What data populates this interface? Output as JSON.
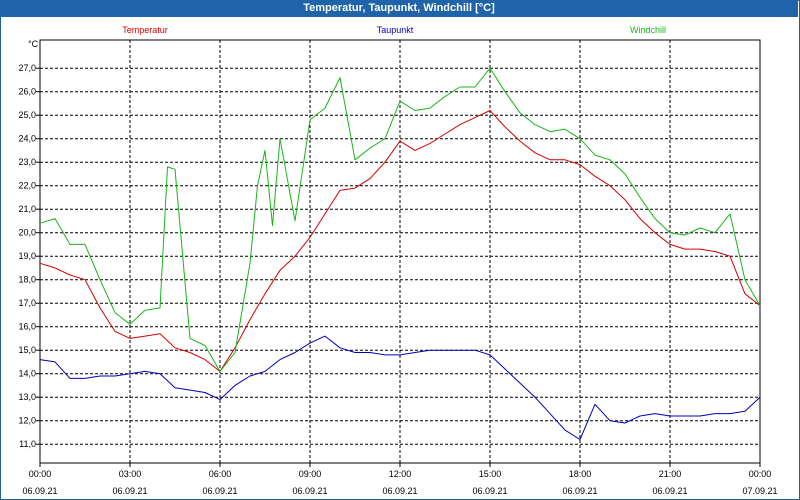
{
  "window": {
    "title": "Temperatur, Taupunkt, Windchill [°C]"
  },
  "colors": {
    "temperatur": "#d40000",
    "taupunkt": "#0000b4",
    "windchill": "#19b419",
    "titlebar": "#1f63a8",
    "grid": "#000000"
  },
  "chart_data": {
    "type": "line",
    "title": "Temperatur, Taupunkt, Windchill [°C]",
    "ylabel": "°C",
    "ylim": [
      10.2,
      28.2
    ],
    "xlim": [
      0,
      24
    ],
    "grid": true,
    "legend": [
      "Temperatur",
      "Taupunkt",
      "Windchill"
    ],
    "y_ticks": [
      "11,0",
      "12,0",
      "13,0",
      "14,0",
      "15,0",
      "16,0",
      "17,0",
      "18,0",
      "19,0",
      "20,0",
      "21,0",
      "22,0",
      "23,0",
      "24,0",
      "25,0",
      "26,0",
      "27,0"
    ],
    "x_ticks": [
      {
        "time": "00:00",
        "date": "06.09.21"
      },
      {
        "time": "03:00",
        "date": "06.09.21"
      },
      {
        "time": "06:00",
        "date": "06.09.21"
      },
      {
        "time": "09:00",
        "date": "06.09.21"
      },
      {
        "time": "12:00",
        "date": "06.09.21"
      },
      {
        "time": "15:00",
        "date": "06.09.21"
      },
      {
        "time": "18:00",
        "date": "06.09.21"
      },
      {
        "time": "21:00",
        "date": "06.09.21"
      },
      {
        "time": "00:00",
        "date": "07.09.21"
      }
    ],
    "series": [
      {
        "name": "Temperatur",
        "x": [
          0,
          0.5,
          1,
          1.5,
          2,
          2.5,
          3,
          3.5,
          4,
          4.5,
          5,
          5.5,
          6,
          6.5,
          7,
          7.5,
          8,
          8.5,
          9,
          9.5,
          10,
          10.5,
          11,
          11.5,
          12,
          12.5,
          13,
          13.5,
          14,
          14.5,
          15,
          15.5,
          16,
          16.5,
          17,
          17.5,
          18,
          18.5,
          19,
          19.5,
          20,
          20.5,
          21,
          21.5,
          22,
          22.5,
          23,
          23.5,
          24
        ],
        "values": [
          18.7,
          18.5,
          18.2,
          18.0,
          16.8,
          15.8,
          15.5,
          15.6,
          15.7,
          15.1,
          14.9,
          14.6,
          14.1,
          15.1,
          16.3,
          17.4,
          18.4,
          19.0,
          19.8,
          20.8,
          21.8,
          21.9,
          22.3,
          23.0,
          23.9,
          23.5,
          23.8,
          24.2,
          24.6,
          24.9,
          25.2,
          24.5,
          23.9,
          23.4,
          23.1,
          23.1,
          22.9,
          22.4,
          22.0,
          21.4,
          20.6,
          20.0,
          19.5,
          19.3,
          19.3,
          19.2,
          19.0,
          17.4,
          16.9
        ]
      },
      {
        "name": "Taupunkt",
        "x": [
          0,
          0.5,
          1,
          1.5,
          2,
          2.5,
          3,
          3.5,
          4,
          4.5,
          5,
          5.5,
          6,
          6.5,
          7,
          7.5,
          8,
          8.5,
          9,
          9.5,
          10,
          10.5,
          11,
          11.5,
          12,
          12.5,
          13,
          13.5,
          14,
          14.5,
          15,
          15.5,
          16,
          16.5,
          17,
          17.5,
          18,
          18.5,
          19,
          19.5,
          20,
          20.5,
          21,
          21.5,
          22,
          22.5,
          23,
          23.5,
          24
        ],
        "values": [
          14.6,
          14.5,
          13.8,
          13.8,
          13.9,
          13.9,
          14.0,
          14.1,
          14.0,
          13.4,
          13.3,
          13.2,
          12.9,
          13.5,
          13.9,
          14.1,
          14.6,
          14.9,
          15.3,
          15.6,
          15.1,
          14.9,
          14.9,
          14.8,
          14.8,
          14.9,
          15.0,
          15.0,
          15.0,
          15.0,
          14.8,
          14.2,
          13.6,
          13.0,
          12.3,
          11.6,
          11.2,
          12.7,
          12.0,
          11.9,
          12.2,
          12.3,
          12.2,
          12.2,
          12.2,
          12.3,
          12.3,
          12.4,
          13.0
        ]
      },
      {
        "name": "Windchill",
        "x": [
          0,
          0.5,
          1,
          1.5,
          2,
          2.5,
          3,
          3.5,
          4,
          4.25,
          4.5,
          5,
          5.5,
          6,
          6.5,
          7,
          7.25,
          7.5,
          7.75,
          8,
          8.5,
          9,
          9.5,
          10,
          10.5,
          11,
          11.5,
          12,
          12.5,
          13,
          13.5,
          14,
          14.5,
          15,
          15.5,
          16,
          16.5,
          17,
          17.5,
          18,
          18.5,
          19,
          19.5,
          20,
          20.5,
          21,
          21.5,
          22,
          22.5,
          23,
          23.5,
          24
        ],
        "values": [
          20.4,
          20.6,
          19.5,
          19.5,
          18.0,
          16.6,
          16.1,
          16.7,
          16.8,
          22.8,
          22.7,
          15.5,
          15.2,
          14.1,
          14.9,
          18.7,
          22.0,
          23.5,
          20.3,
          24.0,
          20.5,
          24.8,
          25.3,
          26.6,
          23.1,
          23.6,
          24.0,
          25.6,
          25.2,
          25.3,
          25.8,
          26.2,
          26.2,
          27.0,
          26.0,
          25.1,
          24.6,
          24.3,
          24.4,
          24.0,
          23.3,
          23.1,
          22.5,
          21.5,
          20.6,
          20.0,
          19.9,
          20.2,
          20.0,
          20.8,
          18.0,
          16.9
        ]
      }
    ]
  }
}
